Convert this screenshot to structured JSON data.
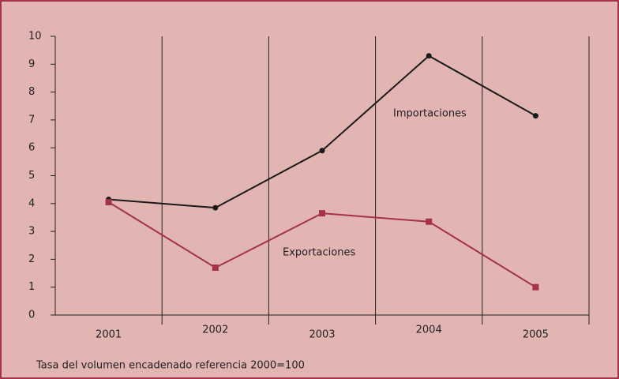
{
  "chart_data": {
    "type": "line",
    "categories": [
      "2001",
      "2002",
      "2003",
      "2004",
      "2005"
    ],
    "series": [
      {
        "name": "Importaciones",
        "color": "#1a1a1a",
        "values": [
          4.15,
          3.85,
          5.9,
          9.3,
          7.15
        ]
      },
      {
        "name": "Exportaciones",
        "color": "#a3324a",
        "values": [
          4.05,
          1.7,
          3.65,
          3.35,
          1.0
        ]
      }
    ],
    "ylim": [
      0,
      10
    ],
    "yticks": [
      0,
      1,
      2,
      3,
      4,
      5,
      6,
      7,
      8,
      9,
      10
    ],
    "note": "Tasa del volumen encadenado referencia 2000=100",
    "grid": true
  }
}
